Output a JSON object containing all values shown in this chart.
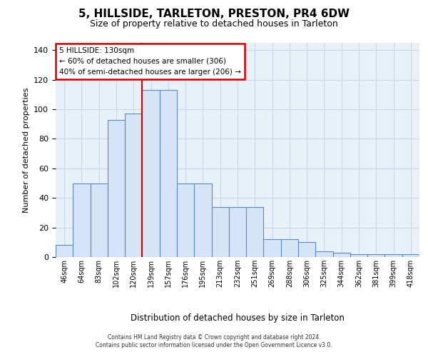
{
  "title1": "5, HILLSIDE, TARLETON, PRESTON, PR4 6DW",
  "title2": "Size of property relative to detached houses in Tarleton",
  "xlabel": "Distribution of detached houses by size in Tarleton",
  "ylabel": "Number of detached properties",
  "bar_heights": [
    8,
    50,
    50,
    93,
    97,
    113,
    113,
    50,
    50,
    34,
    34,
    34,
    12,
    12,
    10,
    4,
    3,
    2,
    2,
    2,
    2
  ],
  "tick_labels": [
    "46sqm",
    "64sqm",
    "83sqm",
    "102sqm",
    "120sqm",
    "139sqm",
    "157sqm",
    "176sqm",
    "195sqm",
    "213sqm",
    "232sqm",
    "251sqm",
    "269sqm",
    "288sqm",
    "306sqm",
    "325sqm",
    "344sqm",
    "362sqm",
    "381sqm",
    "399sqm",
    "418sqm"
  ],
  "bar_color_fill": "#d6e4f7",
  "bar_color_edge": "#5a8abf",
  "grid_color": "#c8d8e8",
  "bg_color": "#e8f0f8",
  "vline_x": 4.5,
  "vline_color": "#cc0000",
  "annotation_line1": "5 HILLSIDE: 130sqm",
  "annotation_line2": "← 60% of detached houses are smaller (306)",
  "annotation_line3": "40% of semi-detached houses are larger (206) →",
  "annotation_box_edgecolor": "#cc0000",
  "ylim_max": 145,
  "yticks": [
    0,
    20,
    40,
    60,
    80,
    100,
    120,
    140
  ],
  "footer1": "Contains HM Land Registry data © Crown copyright and database right 2024.",
  "footer2": "Contains public sector information licensed under the Open Government Licence v3.0."
}
